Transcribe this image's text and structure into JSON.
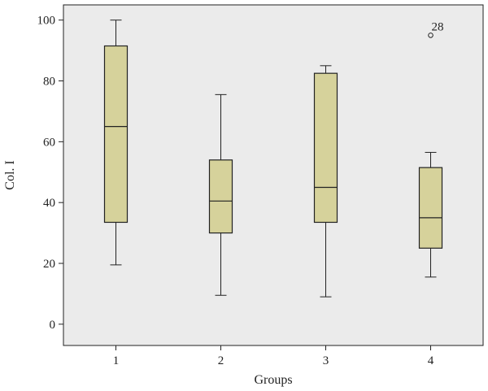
{
  "chart_data": {
    "type": "boxplot",
    "xlabel": "Groups",
    "ylabel": "Col. I",
    "ylim": [
      -7,
      105
    ],
    "yticks": [
      "0",
      "20",
      "40",
      "60",
      "80",
      "100"
    ],
    "categories": [
      "1",
      "2",
      "3",
      "4"
    ],
    "boxes": [
      {
        "category": "1",
        "whisker_low": 19.5,
        "q1": 33.5,
        "median": 65,
        "q3": 91.5,
        "whisker_high": 100
      },
      {
        "category": "2",
        "whisker_low": 9.5,
        "q1": 30,
        "median": 40.5,
        "q3": 54,
        "whisker_high": 75.5
      },
      {
        "category": "3",
        "whisker_low": 9,
        "q1": 33.5,
        "median": 45,
        "q3": 82.5,
        "whisker_high": 85
      },
      {
        "category": "4",
        "whisker_low": 15.5,
        "q1": 25,
        "median": 35,
        "q3": 51.5,
        "whisker_high": 56.5
      }
    ],
    "outliers": [
      {
        "category": "4",
        "value": 95,
        "label": "28"
      }
    ],
    "colors": {
      "plot_background": "#ebebeb",
      "box_fill": "#d6d29b",
      "stroke": "#222222"
    },
    "grid": false,
    "legend": "none"
  }
}
